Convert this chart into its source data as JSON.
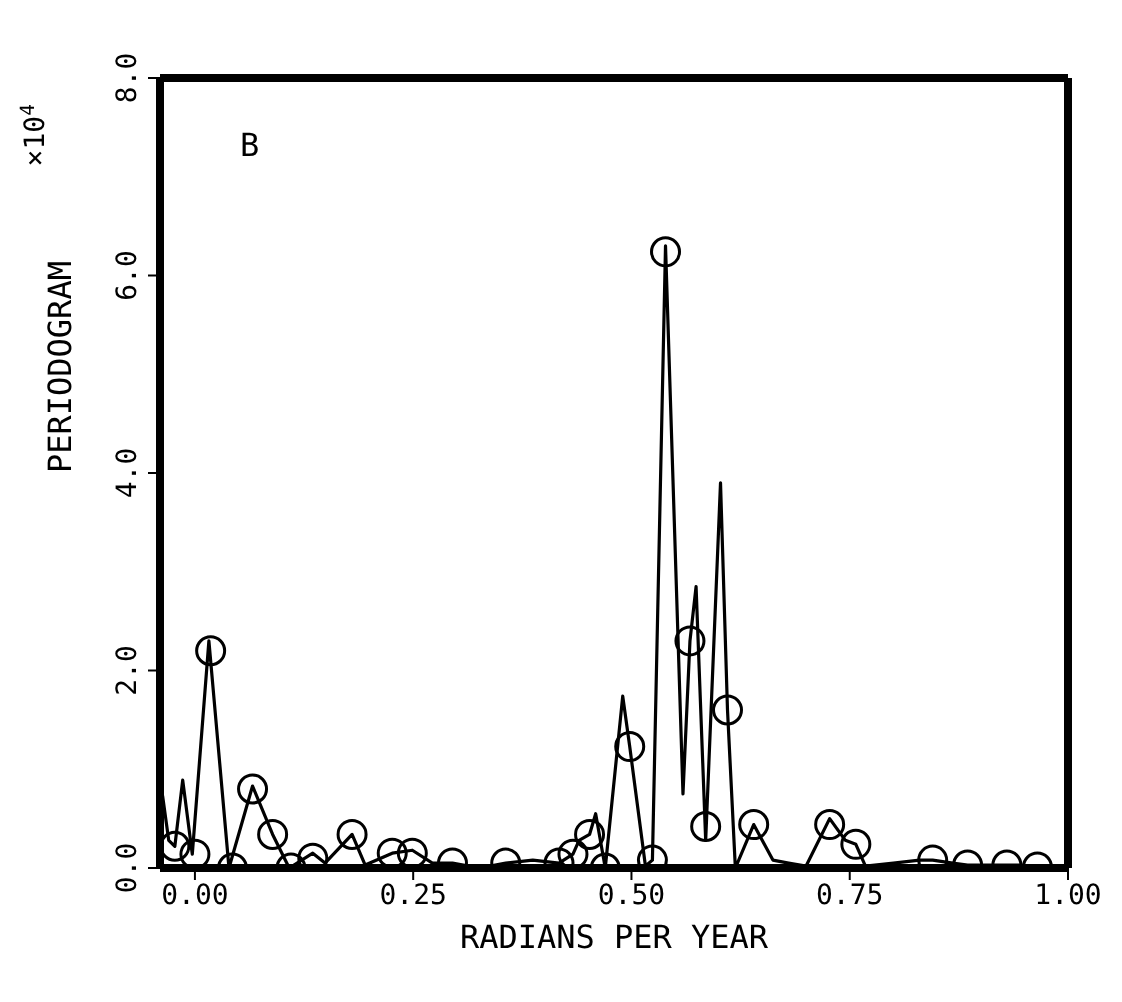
{
  "chart_data": {
    "type": "line",
    "xlabel": "RADIANS PER YEAR",
    "ylabel": "PERIODOGRAM",
    "annotations": [
      "B",
      "×10$^{4}$"
    ],
    "xlim": [
      -0.04,
      1.0
    ],
    "xticks": [
      {
        "value": 0,
        "label": "0.00"
      },
      0.25,
      {
        "value": 0.5,
        "label": "0.50"
      },
      0.75,
      {
        "value": 1,
        "label": "1.00"
      }
    ],
    "ylim": [
      0,
      8
    ],
    "yticks": [
      {
        "value": 0,
        "label": "0.0"
      },
      {
        "value": 2,
        "label": "2.0"
      },
      {
        "value": 4,
        "label": "4.0"
      },
      {
        "value": 6,
        "label": "6.0"
      },
      {
        "value": 8,
        "label": "8.0"
      }
    ],
    "grid": false,
    "marker": "none",
    "line_style": "solid",
    "series": [
      {
        "color": "#000000",
        "x": [
          -0.04,
          -0.037,
          -0.03,
          -0.023,
          -0.014,
          -0.003,
          0.016,
          0.039,
          0.066,
          0.089,
          0.108,
          0.135,
          0.149,
          0.18,
          0.195,
          0.226,
          0.249,
          0.272,
          0.295,
          0.326,
          0.356,
          0.387,
          0.417,
          0.433,
          0.44,
          0.452,
          0.459,
          0.47,
          0.49,
          0.498,
          0.516,
          0.524,
          0.539,
          0.559,
          0.567,
          0.574,
          0.585,
          0.602,
          0.61,
          0.619,
          0.64,
          0.662,
          0.68,
          0.7,
          0.727,
          0.745,
          0.757,
          0.768,
          0.8,
          0.83,
          0.845,
          0.868,
          0.885,
          0.906,
          0.93,
          0.945,
          0.965,
          0.975,
          1.0
        ],
        "values": [
          0.15,
          0.73,
          0.28,
          0.22,
          0.89,
          0.14,
          2.3,
          0,
          0.83,
          0.34,
          0,
          0.15,
          0.05,
          0.34,
          0.03,
          0.15,
          0.18,
          0.05,
          0.05,
          0,
          0.05,
          0.08,
          0.05,
          0.14,
          0.28,
          0.34,
          0.55,
          0,
          1.74,
          1.23,
          0.02,
          0.08,
          6.3,
          0.75,
          2.3,
          2.85,
          0.28,
          3.9,
          1.6,
          0,
          0.44,
          0.08,
          0.05,
          0.02,
          0.5,
          0.28,
          0.24,
          0.02,
          0.05,
          0.08,
          0.08,
          0.05,
          0.03,
          0.03,
          0.03,
          0.03,
          0.01,
          0.01,
          0.01
        ]
      },
      {
        "type": "scatter",
        "color": "#000000",
        "marker": "circle",
        "x": [
          -0.023,
          0.0,
          0.018,
          0.043,
          0.066,
          0.089,
          0.11,
          0.135,
          0.18,
          0.226,
          0.249,
          0.295,
          0.356,
          0.417,
          0.433,
          0.452,
          0.47,
          0.498,
          0.524,
          0.539,
          0.567,
          0.585,
          0.61,
          0.64,
          0.727,
          0.757,
          0.845,
          0.885,
          0.93,
          0.965
        ],
        "values": [
          0.22,
          0.14,
          2.2,
          0,
          0.8,
          0.34,
          0,
          0.1,
          0.34,
          0.15,
          0.15,
          0.05,
          0.05,
          0.05,
          0.14,
          0.34,
          0,
          1.23,
          0.08,
          6.24,
          2.3,
          0.42,
          1.6,
          0.44,
          0.44,
          0.24,
          0.08,
          0.03,
          0.03,
          0.01
        ]
      }
    ]
  }
}
